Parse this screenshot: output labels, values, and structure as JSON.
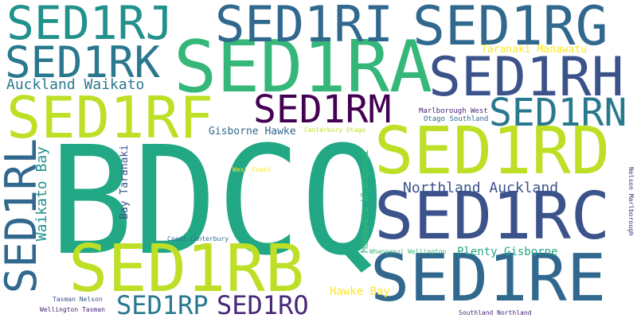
{
  "words": {
    "bdcq": "BDCQ",
    "sed1ra": "SED1RA",
    "sed1rb": "SED1RB",
    "sed1rc": "SED1RC",
    "sed1rd": "SED1RD",
    "sed1re": "SED1RE",
    "sed1rf": "SED1RF",
    "sed1rg": "SED1RG",
    "sed1rh": "SED1RH",
    "sed1ri": "SED1RI",
    "sed1rj": "SED1RJ",
    "sed1rk": "SED1RK",
    "sed1rl": "SED1RL",
    "sed1rm": "SED1RM",
    "sed1rn": "SED1RN",
    "sed1ro": "SED1RO",
    "sed1rp": "SED1RP",
    "auckland_waikato": "Auckland Waikato",
    "northland_auckland": "Northland Auckland",
    "gisborne_hawke": "Gisborne Hawke",
    "taranaki_manawatu": "Taranaki Manawatu",
    "marlborough_west": "Marlborough West",
    "otago_southland": "Otago Southland",
    "canterbury_otago": "Canterbury Otago",
    "west_coast": "West Coast",
    "bay_taranaki": "Bay Taranaki",
    "waikato_bay": "Waikato Bay",
    "manawatu_whanganui": "Manawatu Whanganui",
    "coast_canterbury": "Coast Canterbury",
    "whanganui_wellington": "Whanganui Wellington",
    "plenty_gisborne": "Plenty Gisborne",
    "hawke_bay": "Hawke Bay",
    "nelson_marlborough": "Nelson Marlborough",
    "tasman_nelson": "Tasman Nelson",
    "wellington_tasman": "Wellington Tasman",
    "southland_northland": "Southland Northland"
  },
  "colors": {
    "teal": "#21918c",
    "green": "#22a884",
    "lime": "#bddf26",
    "yellow": "#fde725",
    "navy": "#3b528b",
    "purple": "#440154",
    "blue": "#31688e",
    "indigo": "#482878",
    "aqua": "#2a788e",
    "mint": "#35b779"
  }
}
